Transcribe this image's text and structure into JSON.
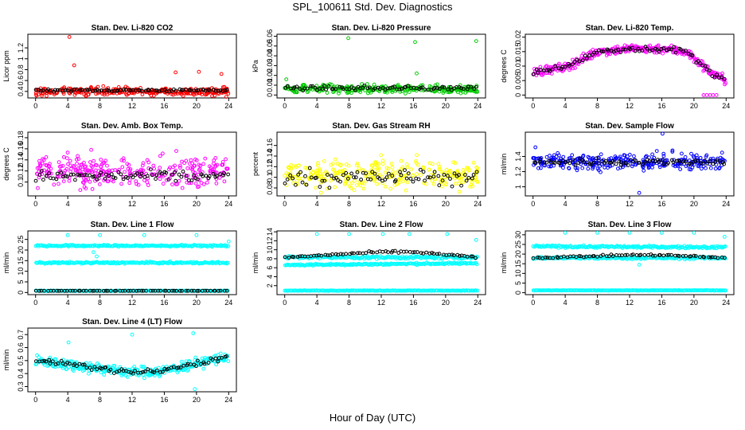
{
  "page": {
    "title": "SPL_100611  Std. Dev. Diagnostics",
    "xlabel": "Hour of Day (UTC)"
  },
  "chart_data": [
    {
      "id": "co2",
      "type": "scatter",
      "title": "Stan. Dev. Li-820 CO2",
      "ylabel": "Licor ppm",
      "xlim": [
        0,
        24
      ],
      "xticks": [
        0,
        4,
        8,
        12,
        16,
        20,
        24
      ],
      "ylim": [
        0.28,
        1.45
      ],
      "yticks": [
        0.4,
        0.6,
        0.8,
        1.0,
        1.2
      ],
      "series": [
        {
          "color": "#ff0000",
          "noise_band": {
            "base": 0.4,
            "spread": 0.07,
            "count": 300
          },
          "outliers": [
            {
              "x": 4.2,
              "y": 1.4
            },
            {
              "x": 4.8,
              "y": 0.88
            },
            {
              "x": 23.7,
              "y": 0.3
            },
            {
              "x": 20.3,
              "y": 0.76
            },
            {
              "x": 23.1,
              "y": 0.72
            },
            {
              "x": 17.4,
              "y": 0.75
            }
          ]
        },
        {
          "color": "#000000",
          "profile": {
            "x": [
              0,
              24
            ],
            "y": [
              0.42,
              0.42
            ]
          },
          "noise": 0.02,
          "count": 80
        }
      ]
    },
    {
      "id": "pressure",
      "type": "scatter",
      "title": "Stan. Dev. Li-820 Pressure",
      "ylabel": "kPa",
      "xlim": [
        0,
        24
      ],
      "xticks": [
        0,
        4,
        8,
        12,
        16,
        20,
        24
      ],
      "ylim": [
        -0.003,
        0.062
      ],
      "yticks": [
        0.0,
        0.01,
        0.02,
        0.03,
        0.04,
        0.05,
        0.06
      ],
      "series": [
        {
          "color": "#00cc00",
          "noise_band": {
            "base": 0.006,
            "spread": 0.004,
            "count": 300
          },
          "outliers": [
            {
              "x": 7.9,
              "y": 0.058
            },
            {
              "x": 16.2,
              "y": 0.054
            },
            {
              "x": 23.8,
              "y": 0.055
            },
            {
              "x": 16.4,
              "y": 0.022
            },
            {
              "x": 0.2,
              "y": 0.016
            }
          ]
        },
        {
          "color": "#000000",
          "profile": {
            "x": [
              0,
              24
            ],
            "y": [
              0.007,
              0.007
            ]
          },
          "noise": 0.002,
          "count": 80
        }
      ]
    },
    {
      "id": "temp",
      "type": "scatter",
      "title": "Stan. Dev. Li-820 Temp.",
      "ylabel": "degrees C",
      "xlim": [
        0,
        24
      ],
      "xticks": [
        0,
        4,
        8,
        12,
        16,
        20,
        24
      ],
      "ylim": [
        -0.001,
        0.021
      ],
      "yticks": [
        0.0,
        0.005,
        0.01,
        0.015,
        0.02
      ],
      "series": [
        {
          "color": "#ff00ff",
          "profile": {
            "x": [
              0,
              4,
              8,
              12,
              16,
              19,
              22,
              24
            ],
            "y": [
              0.008,
              0.0095,
              0.015,
              0.016,
              0.016,
              0.015,
              0.008,
              0.005
            ]
          },
          "noise": 0.0015,
          "count": 300,
          "outliers": [
            {
              "x": 21.2,
              "y": 0.0
            },
            {
              "x": 21.6,
              "y": 0.0
            },
            {
              "x": 22.0,
              "y": 0.0
            },
            {
              "x": 22.4,
              "y": 0.0
            },
            {
              "x": 22.8,
              "y": 0.0
            }
          ]
        },
        {
          "color": "#000000",
          "profile": {
            "x": [
              0,
              4,
              8,
              12,
              16,
              19,
              22,
              24
            ],
            "y": [
              0.008,
              0.0095,
              0.015,
              0.016,
              0.016,
              0.015,
              0.008,
              0.005
            ]
          },
          "noise": 0.001,
          "count": 80
        }
      ]
    },
    {
      "id": "ambbox",
      "type": "scatter",
      "title": "Stan. Dev. Amb. Box Temp.",
      "ylabel": "degrees C",
      "xlim": [
        0,
        24
      ],
      "xticks": [
        0,
        4,
        8,
        12,
        16,
        20,
        24
      ],
      "ylim": [
        0.075,
        0.19
      ],
      "yticks": [
        0.1,
        0.12,
        0.14,
        0.16,
        0.18
      ],
      "series": [
        {
          "color": "#ff00ff",
          "noise_band": {
            "base": 0.12,
            "spread": 0.025,
            "count": 300
          }
        },
        {
          "color": "#000000",
          "profile": {
            "x": [
              0,
              24
            ],
            "y": [
              0.11,
              0.11
            ]
          },
          "noise": 0.01,
          "count": 80
        }
      ]
    },
    {
      "id": "rh",
      "type": "scatter",
      "title": "Stan. Dev. Gas Stream RH",
      "ylabel": "percent",
      "xlim": [
        0,
        24
      ],
      "xticks": [
        0,
        4,
        8,
        12,
        16,
        20,
        24
      ],
      "ylim": [
        0.065,
        0.185
      ],
      "yticks": [
        0.08,
        0.1,
        0.12,
        0.14,
        0.16
      ],
      "series": [
        {
          "color": "#ffff00",
          "noise_band": {
            "base": 0.105,
            "spread": 0.025,
            "count": 300
          }
        },
        {
          "color": "#000000",
          "profile": {
            "x": [
              0,
              24
            ],
            "y": [
              0.1,
              0.1
            ]
          },
          "noise": 0.015,
          "count": 80
        }
      ]
    },
    {
      "id": "sampleflow",
      "type": "scatter",
      "title": "Stan. Dev. Sample Flow",
      "ylabel": "ml/min",
      "xlim": [
        0,
        24
      ],
      "xticks": [
        0,
        4,
        8,
        12,
        16,
        20,
        24
      ],
      "ylim": [
        0.88,
        1.72
      ],
      "yticks": [
        1.0,
        1.2,
        1.4
      ],
      "series": [
        {
          "color": "#0000ff",
          "noise_band": {
            "base": 1.33,
            "spread": 0.1,
            "count": 300
          },
          "outliers": [
            {
              "x": 16.1,
              "y": 1.7
            },
            {
              "x": 0.3,
              "y": 1.52
            },
            {
              "x": 13.2,
              "y": 0.92
            }
          ]
        },
        {
          "color": "#000000",
          "profile": {
            "x": [
              0,
              24
            ],
            "y": [
              1.33,
              1.33
            ]
          },
          "noise": 0.04,
          "count": 80
        }
      ]
    },
    {
      "id": "line1",
      "type": "scatter",
      "title": "Stan. Dev. Line 1 Flow",
      "ylabel": "ml/min",
      "xlim": [
        0,
        24
      ],
      "xticks": [
        0,
        4,
        8,
        12,
        16,
        20,
        24
      ],
      "ylim": [
        -1,
        29
      ],
      "yticks": [
        0,
        5,
        10,
        15,
        20,
        25
      ],
      "series": [
        {
          "color": "#00ffff",
          "profile": {
            "x": [
              0,
              24
            ],
            "y": [
              22,
              22
            ]
          },
          "noise": 0.4,
          "count": 200,
          "outliers": [
            {
              "x": 4.0,
              "y": 27
            },
            {
              "x": 8.0,
              "y": 27
            },
            {
              "x": 13.5,
              "y": 27
            },
            {
              "x": 20.0,
              "y": 27
            },
            {
              "x": 24.0,
              "y": 24
            },
            {
              "x": 7.2,
              "y": 19
            },
            {
              "x": 7.6,
              "y": 17
            }
          ]
        },
        {
          "color": "#00ffff",
          "profile": {
            "x": [
              0,
              24
            ],
            "y": [
              14,
              14
            ]
          },
          "noise": 0.4,
          "count": 200
        },
        {
          "color": "#00ffff",
          "profile": {
            "x": [
              0,
              24
            ],
            "y": [
              0.8,
              0.8
            ]
          },
          "noise": 0.1,
          "count": 200
        },
        {
          "color": "#000000",
          "profile": {
            "x": [
              0,
              24
            ],
            "y": [
              0.8,
              0.8
            ]
          },
          "noise": 0.05,
          "count": 70
        }
      ]
    },
    {
      "id": "line2",
      "type": "scatter",
      "title": "Stan. Dev. Line 2 Flow",
      "ylabel": "ml/min",
      "xlim": [
        0,
        24
      ],
      "xticks": [
        0,
        4,
        8,
        12,
        16,
        20,
        24
      ],
      "ylim": [
        0,
        14.2
      ],
      "yticks": [
        2,
        4,
        6,
        8,
        10,
        12,
        14
      ],
      "series": [
        {
          "color": "#00ffff",
          "profile": {
            "x": [
              0,
              24
            ],
            "y": [
              8.3,
              8.3
            ]
          },
          "noise": 0.3,
          "count": 200,
          "outliers": [
            {
              "x": 4.0,
              "y": 13.5
            },
            {
              "x": 8.0,
              "y": 13.5
            },
            {
              "x": 12.2,
              "y": 13.5
            },
            {
              "x": 15.5,
              "y": 13.5
            },
            {
              "x": 20.2,
              "y": 13.5
            },
            {
              "x": 23.8,
              "y": 12.2
            }
          ]
        },
        {
          "color": "#00ffff",
          "profile": {
            "x": [
              0,
              24
            ],
            "y": [
              6.6,
              7.0
            ]
          },
          "noise": 0.2,
          "count": 200
        },
        {
          "color": "#00ffff",
          "profile": {
            "x": [
              0,
              24
            ],
            "y": [
              0.9,
              0.9
            ]
          },
          "noise": 0.05,
          "count": 200
        },
        {
          "color": "#000000",
          "profile": {
            "x": [
              0,
              12,
              16,
              24
            ],
            "y": [
              8.3,
              9.5,
              9.5,
              8.3
            ]
          },
          "noise": 0.2,
          "count": 70
        }
      ]
    },
    {
      "id": "line3",
      "type": "scatter",
      "title": "Stan. Dev. Line 3 Flow",
      "ylabel": "ml/min",
      "xlim": [
        0,
        24
      ],
      "xticks": [
        0,
        4,
        8,
        12,
        16,
        20,
        24
      ],
      "ylim": [
        -1,
        32
      ],
      "yticks": [
        0,
        5,
        10,
        15,
        20,
        25,
        30
      ],
      "series": [
        {
          "color": "#00ffff",
          "profile": {
            "x": [
              0,
              24
            ],
            "y": [
              24,
              23.5
            ]
          },
          "noise": 0.6,
          "count": 200,
          "outliers": [
            {
              "x": 4.0,
              "y": 31
            },
            {
              "x": 8.0,
              "y": 31
            },
            {
              "x": 12.0,
              "y": 31
            },
            {
              "x": 20.0,
              "y": 31
            },
            {
              "x": 23.8,
              "y": 29
            },
            {
              "x": 13.2,
              "y": 14.5
            },
            {
              "x": 16.0,
              "y": 31
            }
          ]
        },
        {
          "color": "#00ffff",
          "profile": {
            "x": [
              0,
              24
            ],
            "y": [
              18,
              18
            ]
          },
          "noise": 0.6,
          "count": 200
        },
        {
          "color": "#00ffff",
          "profile": {
            "x": [
              0,
              24
            ],
            "y": [
              1.2,
              1.2
            ]
          },
          "noise": 0.1,
          "count": 200
        },
        {
          "color": "#000000",
          "profile": {
            "x": [
              0,
              12,
              16,
              24
            ],
            "y": [
              18,
              19.5,
              19.5,
              18
            ]
          },
          "noise": 0.4,
          "count": 70
        }
      ]
    },
    {
      "id": "line4",
      "type": "scatter",
      "title": "Stan. Dev. Line 4 (LT) Flow",
      "ylabel": "ml/min",
      "xlim": [
        0,
        24
      ],
      "xticks": [
        0,
        4,
        8,
        12,
        16,
        20,
        24
      ],
      "ylim": [
        0.26,
        0.75
      ],
      "yticks": [
        0.3,
        0.4,
        0.5,
        0.6,
        0.7
      ],
      "series": [
        {
          "color": "#00ffff",
          "profile": {
            "x": [
              0,
              4,
              8,
              12,
              16,
              20,
              24
            ],
            "y": [
              0.5,
              0.47,
              0.44,
              0.41,
              0.42,
              0.48,
              0.53
            ]
          },
          "noise": 0.04,
          "count": 300,
          "outliers": [
            {
              "x": 4.1,
              "y": 0.64
            },
            {
              "x": 12.0,
              "y": 0.7
            },
            {
              "x": 19.6,
              "y": 0.71
            },
            {
              "x": 19.8,
              "y": 0.28
            }
          ]
        },
        {
          "color": "#000000",
          "profile": {
            "x": [
              0,
              4,
              8,
              12,
              16,
              20,
              24
            ],
            "y": [
              0.5,
              0.47,
              0.44,
              0.41,
              0.42,
              0.48,
              0.53
            ]
          },
          "noise": 0.02,
          "count": 80
        }
      ]
    }
  ]
}
